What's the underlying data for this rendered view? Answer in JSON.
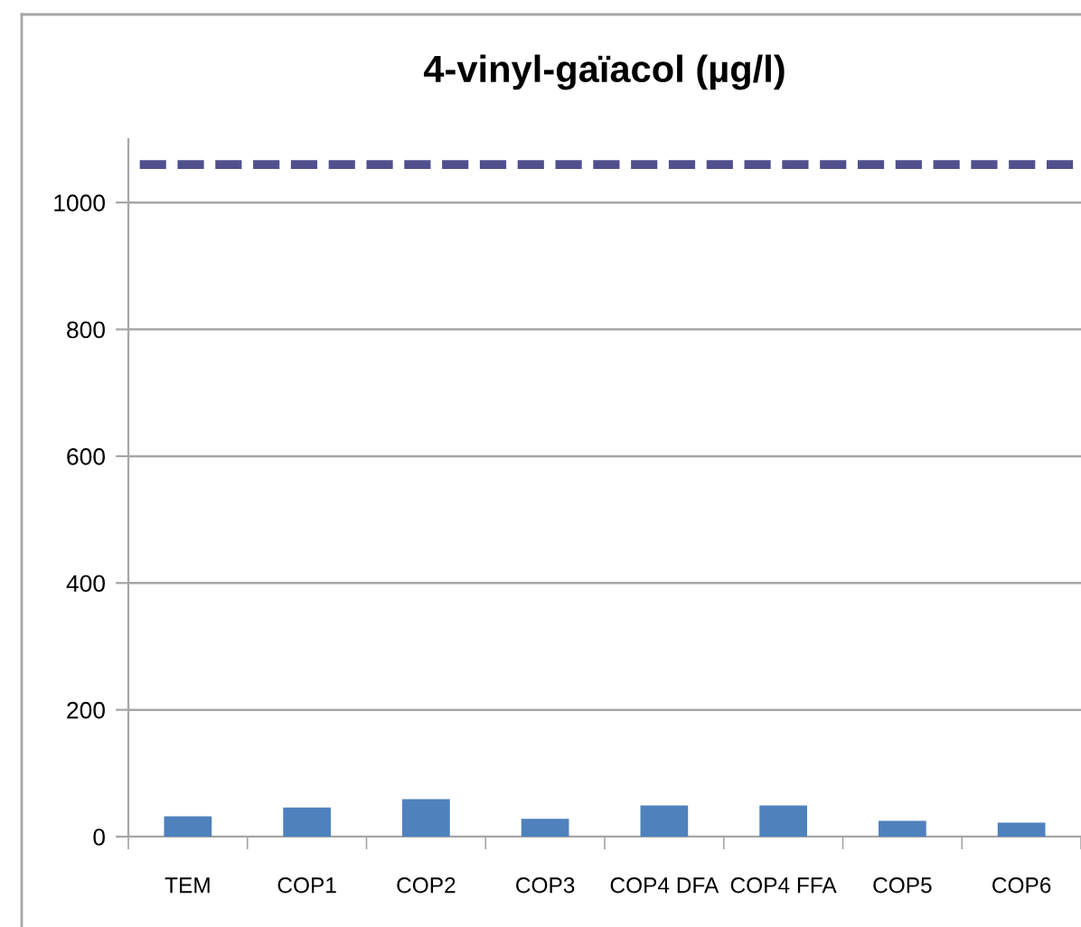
{
  "chart_data": {
    "type": "bar",
    "title": "4-vinyl-gaïacol (µg/l)",
    "categories": [
      "TEM",
      "COP1",
      "COP2",
      "COP3",
      "COP4 DFA",
      "COP4 FFA",
      "COP5",
      "COP6"
    ],
    "series": [
      {
        "color": "#4f81bd",
        "values": [
          32,
          46,
          59,
          28,
          49,
          49,
          25,
          22
        ]
      }
    ],
    "ylim": [
      0,
      1100
    ],
    "yticks": [
      0,
      200,
      400,
      600,
      800,
      1000
    ],
    "grid": "y",
    "ref_lines": [
      {
        "axis": "y",
        "value": 1060,
        "color": "#50508f",
        "line_style": "dashed"
      }
    ]
  }
}
